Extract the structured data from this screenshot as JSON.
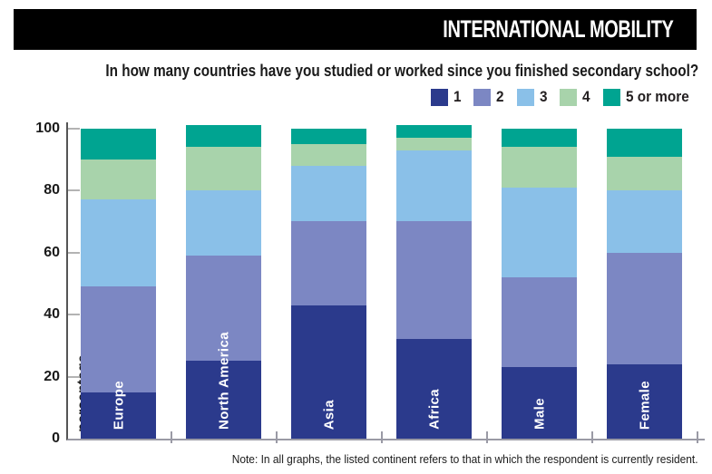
{
  "header": {
    "title": "INTERNATIONAL MOBILITY"
  },
  "question": "In how many countries have you studied or worked since you finished secondary school?",
  "note": "Note: In all graphs, the listed continent refers to that in which the respondent is currently resident.",
  "chart_data": {
    "type": "bar",
    "stacked": true,
    "title": "In how many countries have you studied or worked since you finished secondary school?",
    "categories": [
      "Europe",
      "North America",
      "Asia",
      "Africa",
      "Male",
      "Female"
    ],
    "series": [
      {
        "name": "1",
        "color": "#2b3a8c",
        "values": [
          15,
          25,
          43,
          32,
          23,
          24
        ]
      },
      {
        "name": "2",
        "color": "#7c87c3",
        "values": [
          34,
          34,
          27,
          38,
          29,
          36
        ]
      },
      {
        "name": "3",
        "color": "#8ac0e8",
        "values": [
          28,
          21,
          18,
          23,
          29,
          20
        ]
      },
      {
        "name": "4",
        "color": "#a8d3ab",
        "values": [
          13,
          14,
          7,
          4,
          13,
          11
        ]
      },
      {
        "name": "5 or more",
        "color": "#00a491",
        "values": [
          10,
          7,
          5,
          4,
          6,
          9
        ]
      }
    ],
    "xlabel": "",
    "ylabel": "percentage",
    "ylim": [
      0,
      100
    ],
    "yticks": [
      0,
      20,
      40,
      60,
      80,
      100
    ],
    "grid": false,
    "legend_position": "top-right",
    "bar_label_position": "inside-bottom-rotated"
  }
}
